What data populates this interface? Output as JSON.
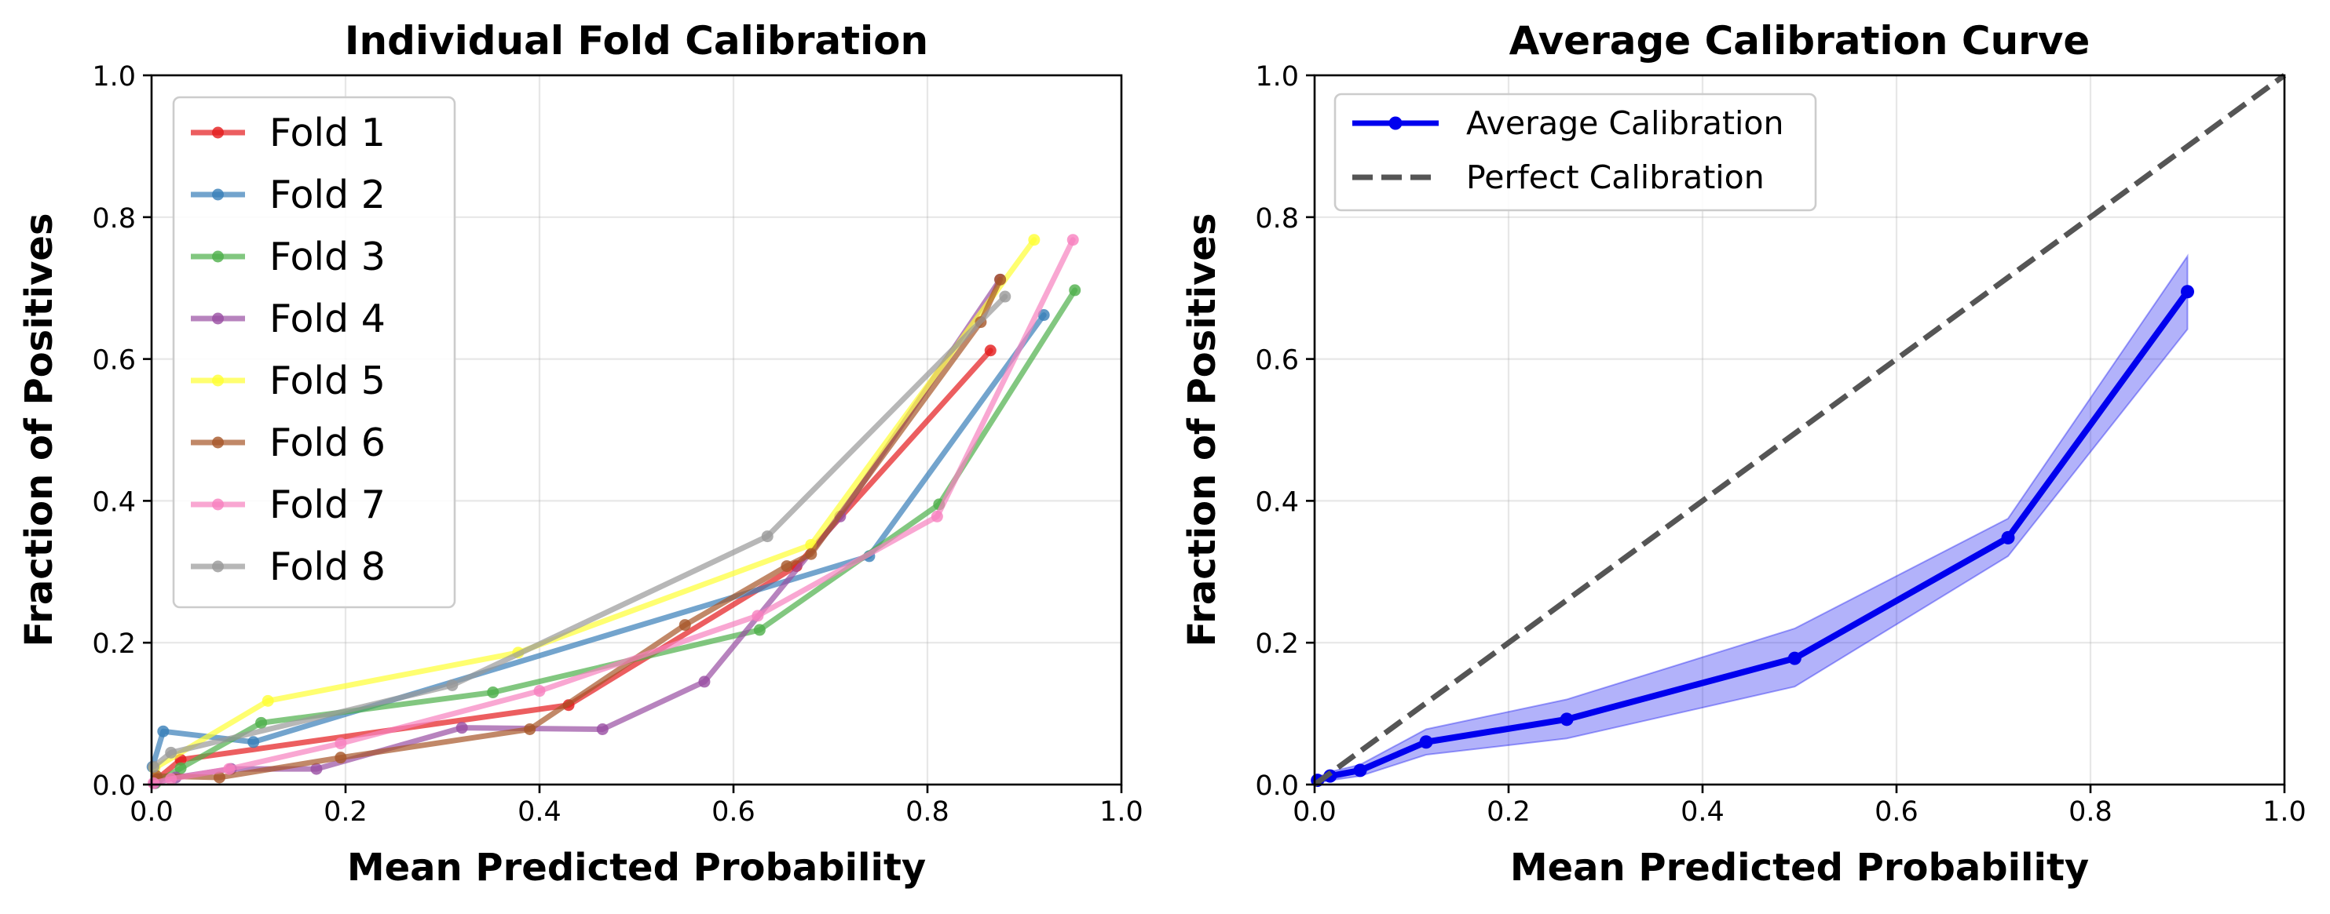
{
  "chart_data": [
    {
      "type": "line",
      "title": "Individual Fold Calibration",
      "xlabel": "Mean Predicted Probability",
      "ylabel": "Fraction of Positives",
      "xlim": [
        0,
        1
      ],
      "ylim": [
        0,
        1
      ],
      "xticks": [
        "0.0",
        "0.2",
        "0.4",
        "0.6",
        "0.8",
        "1.0"
      ],
      "yticks": [
        "0.0",
        "0.2",
        "0.4",
        "0.6",
        "0.8",
        "1.0"
      ],
      "grid": true,
      "legend_position": "upper-left",
      "series": [
        {
          "name": "Fold 1",
          "color": "#e41a1c",
          "x": [
            0.006,
            0.03,
            0.43,
            0.665,
            0.865
          ],
          "y": [
            0.008,
            0.035,
            0.112,
            0.308,
            0.612
          ]
        },
        {
          "name": "Fold 2",
          "color": "#377eb8",
          "x": [
            0.001,
            0.012,
            0.105,
            0.74,
            0.92
          ],
          "y": [
            0.025,
            0.075,
            0.06,
            0.322,
            0.662
          ]
        },
        {
          "name": "Fold 3",
          "color": "#4daf4a",
          "x": [
            0.004,
            0.03,
            0.113,
            0.352,
            0.627,
            0.812,
            0.952
          ],
          "y": [
            0.002,
            0.023,
            0.087,
            0.13,
            0.218,
            0.395,
            0.697
          ]
        },
        {
          "name": "Fold 4",
          "color": "#984ea3",
          "x": [
            0.003,
            0.025,
            0.082,
            0.17,
            0.32,
            0.465,
            0.57,
            0.71,
            0.875
          ],
          "y": [
            0.002,
            0.01,
            0.022,
            0.022,
            0.08,
            0.078,
            0.145,
            0.378,
            0.712
          ]
        },
        {
          "name": "Fold 5",
          "color": "#ffff33",
          "x": [
            0.003,
            0.12,
            0.378,
            0.68,
            0.91
          ],
          "y": [
            0.023,
            0.118,
            0.186,
            0.338,
            0.768
          ]
        },
        {
          "name": "Fold 6",
          "color": "#a65628",
          "x": [
            0.005,
            0.07,
            0.195,
            0.39,
            0.55,
            0.655,
            0.68,
            0.855,
            0.875
          ],
          "y": [
            0.012,
            0.01,
            0.038,
            0.078,
            0.225,
            0.308,
            0.325,
            0.652,
            0.712
          ]
        },
        {
          "name": "Fold 7",
          "color": "#f781bf",
          "x": [
            0.002,
            0.02,
            0.08,
            0.195,
            0.4,
            0.625,
            0.81,
            0.95
          ],
          "y": [
            0.002,
            0.008,
            0.022,
            0.058,
            0.132,
            0.238,
            0.378,
            0.768
          ]
        },
        {
          "name": "Fold 8",
          "color": "#999999",
          "x": [
            0.002,
            0.02,
            0.31,
            0.635,
            0.88
          ],
          "y": [
            0.025,
            0.045,
            0.14,
            0.35,
            0.688
          ]
        }
      ]
    },
    {
      "type": "line",
      "title": "Average Calibration Curve",
      "xlabel": "Mean Predicted Probability",
      "ylabel": "Fraction of Positives",
      "xlim": [
        0,
        1
      ],
      "ylim": [
        0,
        1
      ],
      "xticks": [
        "0.0",
        "0.2",
        "0.4",
        "0.6",
        "0.8",
        "1.0"
      ],
      "yticks": [
        "0.0",
        "0.2",
        "0.4",
        "0.6",
        "0.8",
        "1.0"
      ],
      "grid": true,
      "legend_position": "upper-left",
      "series": [
        {
          "name": "Average Calibration",
          "color": "#0000ee",
          "x": [
            0.003,
            0.016,
            0.047,
            0.115,
            0.26,
            0.495,
            0.715,
            0.9
          ],
          "y": [
            0.006,
            0.012,
            0.02,
            0.06,
            0.092,
            0.178,
            0.348,
            0.695
          ],
          "band_lower": [
            0.002,
            0.006,
            0.012,
            0.042,
            0.065,
            0.138,
            0.322,
            0.642
          ],
          "band_upper": [
            0.01,
            0.018,
            0.028,
            0.078,
            0.12,
            0.22,
            0.375,
            0.745
          ]
        },
        {
          "name": "Perfect Calibration",
          "color": "#555555",
          "style": "dashed",
          "x": [
            0,
            1
          ],
          "y": [
            0,
            1
          ]
        }
      ]
    }
  ]
}
